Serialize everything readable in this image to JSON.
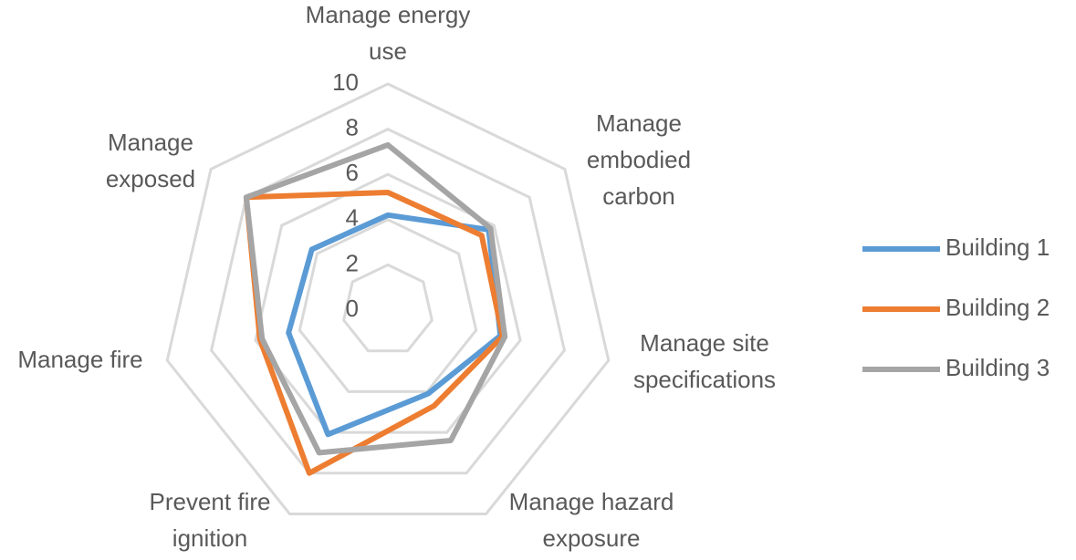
{
  "chart_data": {
    "type": "radar",
    "categories": [
      "Manage energy use",
      "Manage embodied carbon",
      "Manage site specifications",
      "Manage hazard exposure",
      "Prevent fire ignition",
      "Manage fire",
      "Manage exposed"
    ],
    "series": [
      {
        "name": "Building 1",
        "color": "#5b9bd5",
        "values": [
          4.2,
          5.7,
          5.1,
          4.1,
          6.1,
          4.5,
          4.3
        ]
      },
      {
        "name": "Building 2",
        "color": "#ed7d31",
        "values": [
          5.2,
          5.3,
          5.2,
          4.7,
          8.0,
          5.8,
          8.0
        ]
      },
      {
        "name": "Building 3",
        "color": "#a5a5a5",
        "values": [
          7.3,
          5.8,
          5.3,
          6.4,
          7.0,
          5.7,
          8.0
        ]
      }
    ],
    "ylim": [
      0,
      10
    ],
    "yticks": [
      0,
      2,
      4,
      6,
      8,
      10
    ],
    "grid": true,
    "legend": "right"
  }
}
